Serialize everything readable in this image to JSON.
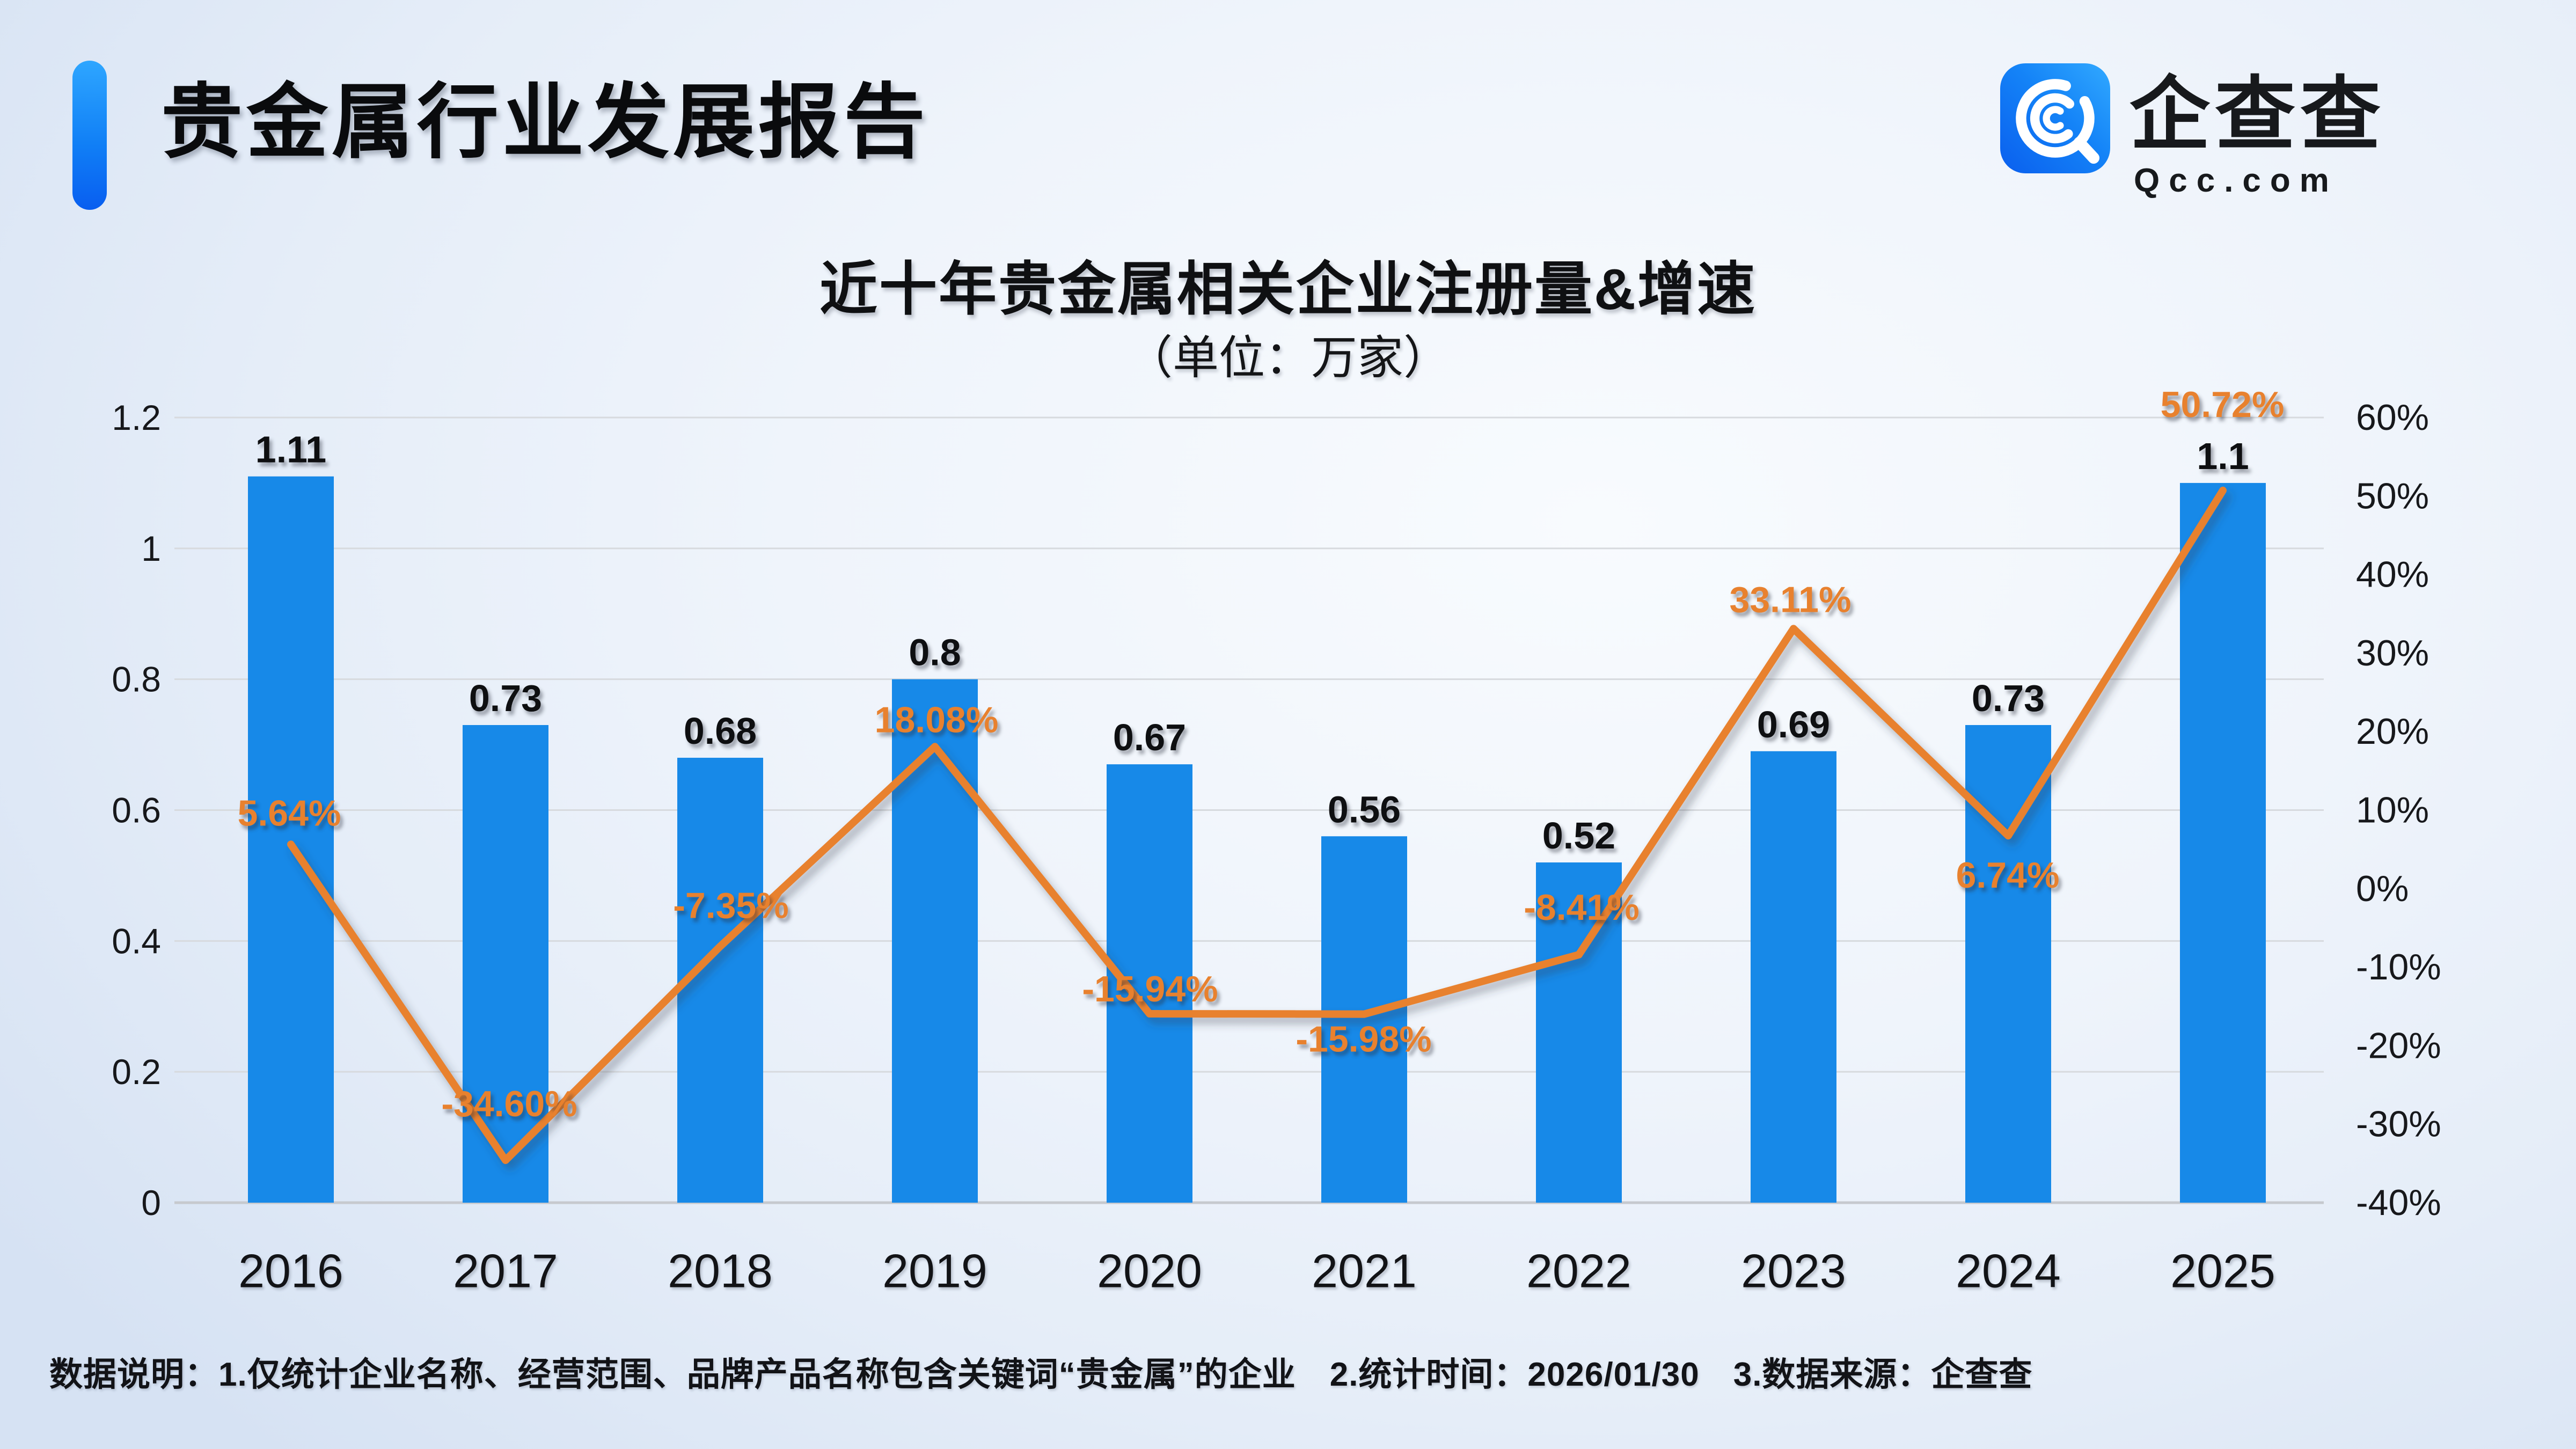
{
  "header": {
    "title": "贵金属行业发展报告"
  },
  "brand": {
    "name": "企查查",
    "domain": "Qcc.com",
    "icon": "qcc-magnifier-logo-icon",
    "brand_blue": "#0d6ef2"
  },
  "chart_data": {
    "type": "bar+line",
    "title": "近十年贵金属相关企业注册量&增速",
    "subtitle": "（单位：万家）",
    "unit": "万家",
    "categories": [
      "2016",
      "2017",
      "2018",
      "2019",
      "2020",
      "2021",
      "2022",
      "2023",
      "2024",
      "2025"
    ],
    "series": [
      {
        "name": "注册量",
        "type": "bar",
        "color": "#1789e8",
        "values": [
          1.11,
          0.73,
          0.68,
          0.8,
          0.67,
          0.56,
          0.52,
          0.69,
          0.73,
          1.1
        ],
        "labels": [
          "1.11",
          "0.73",
          "0.68",
          "0.8",
          "0.67",
          "0.56",
          "0.52",
          "0.69",
          "0.73",
          "1.1"
        ]
      },
      {
        "name": "增速",
        "type": "line",
        "color": "#e8812e",
        "values": [
          5.64,
          -34.6,
          -7.35,
          18.08,
          -15.94,
          -15.98,
          -8.41,
          33.11,
          6.74,
          50.72
        ],
        "labels": [
          "5.64%",
          "-34.60%",
          "-7.35%",
          "18.08%",
          "-15.94%",
          "-15.98%",
          "-8.41%",
          "33.11%",
          "6.74%",
          "50.72%"
        ]
      }
    ],
    "left_axis": {
      "min": 0,
      "max": 1.2,
      "tick_values": [
        1.2,
        1,
        0.8,
        0.6,
        0.4,
        0.2,
        0
      ],
      "tick_labels": [
        "1.2",
        "1",
        "0.8",
        "0.6",
        "0.4",
        "0.2",
        "0"
      ]
    },
    "right_axis": {
      "min": -40,
      "max": 60,
      "tick_values": [
        60,
        50,
        40,
        30,
        20,
        10,
        0,
        -10,
        -20,
        -30,
        -40
      ],
      "tick_labels": [
        "60%",
        "50%",
        "40%",
        "30%",
        "20%",
        "10%",
        "0%",
        "-10%",
        "-20%",
        "-30%",
        "-40%"
      ]
    },
    "grid": true,
    "legend_position": "none",
    "grid_color": "#d7dade",
    "axis_line_color": "#c6c9ce"
  },
  "footer": {
    "note": "数据说明：1.仅统计企业名称、经营范围、品牌产品名称包含关键词“贵金属”的企业　2.统计时间：2026/01/30　3.数据来源：企查查"
  }
}
